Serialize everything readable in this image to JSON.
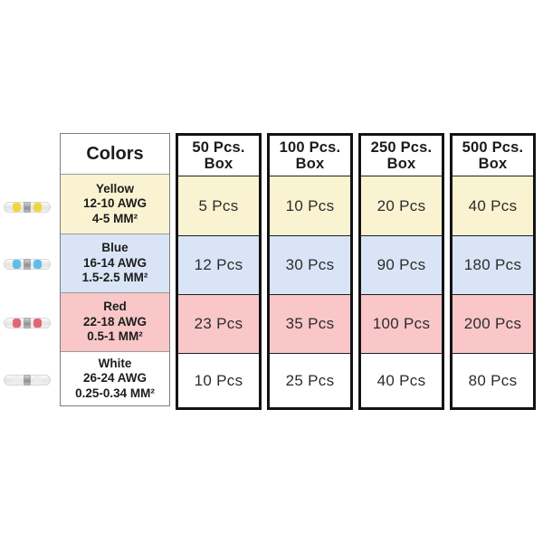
{
  "table": {
    "colors_header": "Colors",
    "columns": [
      {
        "header_line1": "50 Pcs.",
        "header_line2": "Box"
      },
      {
        "header_line1": "100 Pcs.",
        "header_line2": "Box"
      },
      {
        "header_line1": "250 Pcs.",
        "header_line2": "Box"
      },
      {
        "header_line1": "500 Pcs.",
        "header_line2": "Box"
      }
    ],
    "rows": [
      {
        "name": "Yellow",
        "awg": "12-10 AWG",
        "mm2": "4-5 MM²",
        "bg": "#FAF3D2",
        "values": [
          "5 Pcs",
          "10 Pcs",
          "20 Pcs",
          "40 Pcs"
        ]
      },
      {
        "name": "Blue",
        "awg": "16-14 AWG",
        "mm2": "1.5-2.5 MM²",
        "bg": "#D9E5F6",
        "values": [
          "12 Pcs",
          "30 Pcs",
          "90 Pcs",
          "180 Pcs"
        ]
      },
      {
        "name": "Red",
        "awg": "22-18 AWG",
        "mm2": "0.5-1 MM²",
        "bg": "#F9C7C8",
        "values": [
          "23 Pcs",
          "35 Pcs",
          "100 Pcs",
          "200 Pcs"
        ]
      },
      {
        "name": "White",
        "awg": "26-24 AWG",
        "mm2": "0.25-0.34 MM²",
        "bg": "#FFFFFF",
        "values": [
          "10 Pcs",
          "25 Pcs",
          "40 Pcs",
          "80 Pcs"
        ]
      }
    ]
  },
  "connectors": [
    {
      "name": "yellow-butt-connector",
      "band_color": "#EFD42B"
    },
    {
      "name": "blue-butt-connector",
      "band_color": "#4FB9E8"
    },
    {
      "name": "red-butt-connector",
      "band_color": "#E2556A"
    },
    {
      "name": "white-butt-connector",
      "band_color": "#EDEDED"
    }
  ],
  "chart_data": {
    "type": "table",
    "title": "Heat shrink butt connector box size chart",
    "columns": [
      "Colors",
      "50 Pcs. Box",
      "100 Pcs. Box",
      "250 Pcs. Box",
      "500 Pcs. Box"
    ],
    "rows": [
      [
        "Yellow 12-10 AWG 4-5 MM²",
        "5 Pcs",
        "10 Pcs",
        "20 Pcs",
        "40 Pcs"
      ],
      [
        "Blue 16-14 AWG 1.5-2.5 MM²",
        "12 Pcs",
        "30 Pcs",
        "90 Pcs",
        "180 Pcs"
      ],
      [
        "Red 22-18 AWG 0.5-1 MM²",
        "23 Pcs",
        "35 Pcs",
        "100 Pcs",
        "200 Pcs"
      ],
      [
        "White 26-24 AWG 0.25-0.34 MM²",
        "10 Pcs",
        "25 Pcs",
        "40 Pcs",
        "80 Pcs"
      ]
    ],
    "row_colors": [
      "#FAF3D2",
      "#D9E5F6",
      "#F9C7C8",
      "#FFFFFF"
    ],
    "legend_position": "none",
    "grid": true
  }
}
